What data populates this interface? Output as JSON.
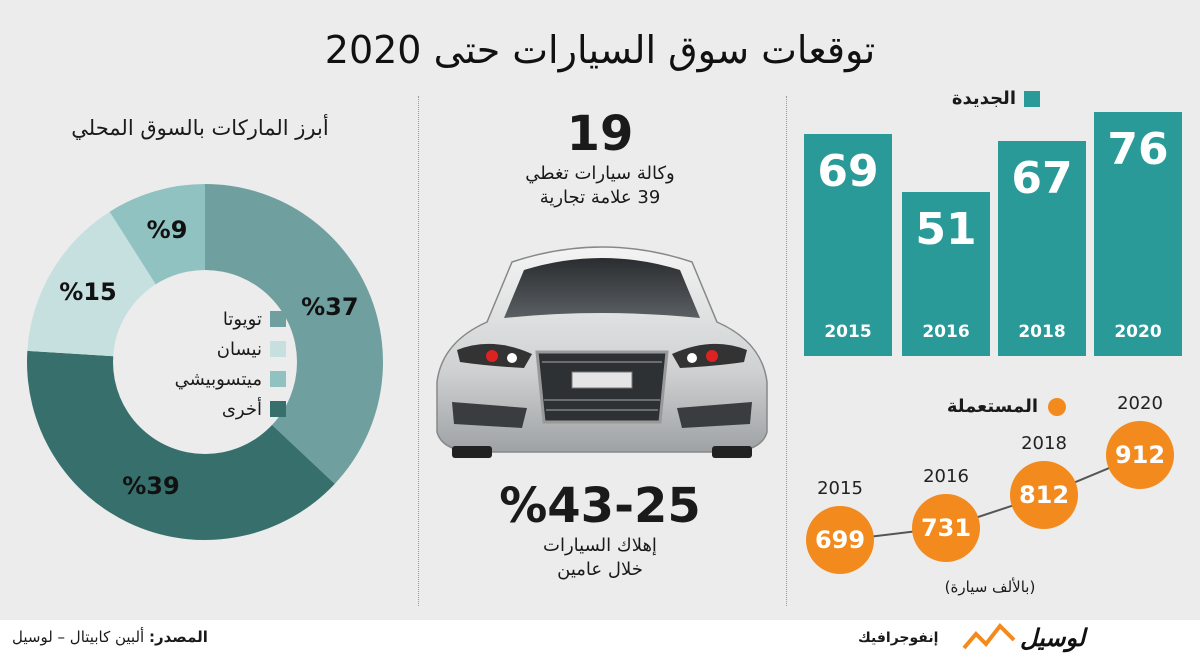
{
  "title": "توقعات سوق السيارات حتى 2020",
  "chart_data": [
    {
      "type": "bar",
      "legend": "الجديدة",
      "categories": [
        "2015",
        "2016",
        "2018",
        "2020"
      ],
      "values": [
        69,
        51,
        67,
        76
      ],
      "value_labels": [
        "69",
        "51",
        "67",
        "76"
      ],
      "color": "#2a9a98"
    },
    {
      "type": "line",
      "legend": "المستعملة",
      "x": [
        "2015",
        "2016",
        "2018",
        "2020"
      ],
      "values": [
        699,
        731,
        812,
        912
      ],
      "value_labels": [
        "699",
        "731",
        "812",
        "912"
      ],
      "units_note": "(بالألف سيارة)",
      "color": "#f28a1e"
    },
    {
      "type": "pie",
      "title": "أبرز الماركات بالسوق المحلي",
      "labels": [
        "تويوتا",
        "أخرى",
        "نيسان",
        "ميتسوبيشي"
      ],
      "values": [
        37,
        39,
        15,
        9
      ],
      "value_labels": [
        "%37",
        "%39",
        "%15",
        "%9"
      ],
      "colors": [
        "#6fa09f",
        "#366f6c",
        "#c6e0df",
        "#8fc2c1"
      ]
    }
  ],
  "legend": {
    "items": [
      {
        "label": "تويوتا",
        "color": "#6fa09f"
      },
      {
        "label": "نيسان",
        "color": "#c6e0df"
      },
      {
        "label": "ميتسوبيشي",
        "color": "#8fc2c1"
      },
      {
        "label": "أخرى",
        "color": "#366f6c"
      }
    ]
  },
  "middle": {
    "agencies_count": "19",
    "agencies_line1": "وكالة سيارات تغطي",
    "agencies_line2": "39 علامة تجارية",
    "depreciation": "%43-25",
    "depreciation_line1": "إهلاك السيارات",
    "depreciation_line2": "خلال عامين"
  },
  "footer": {
    "source_label": "المصدر:",
    "source_text": "ألبين كابيتال – لوسيل",
    "brand": "لوسيل",
    "brand_sub": "إنفوجرافيك"
  }
}
